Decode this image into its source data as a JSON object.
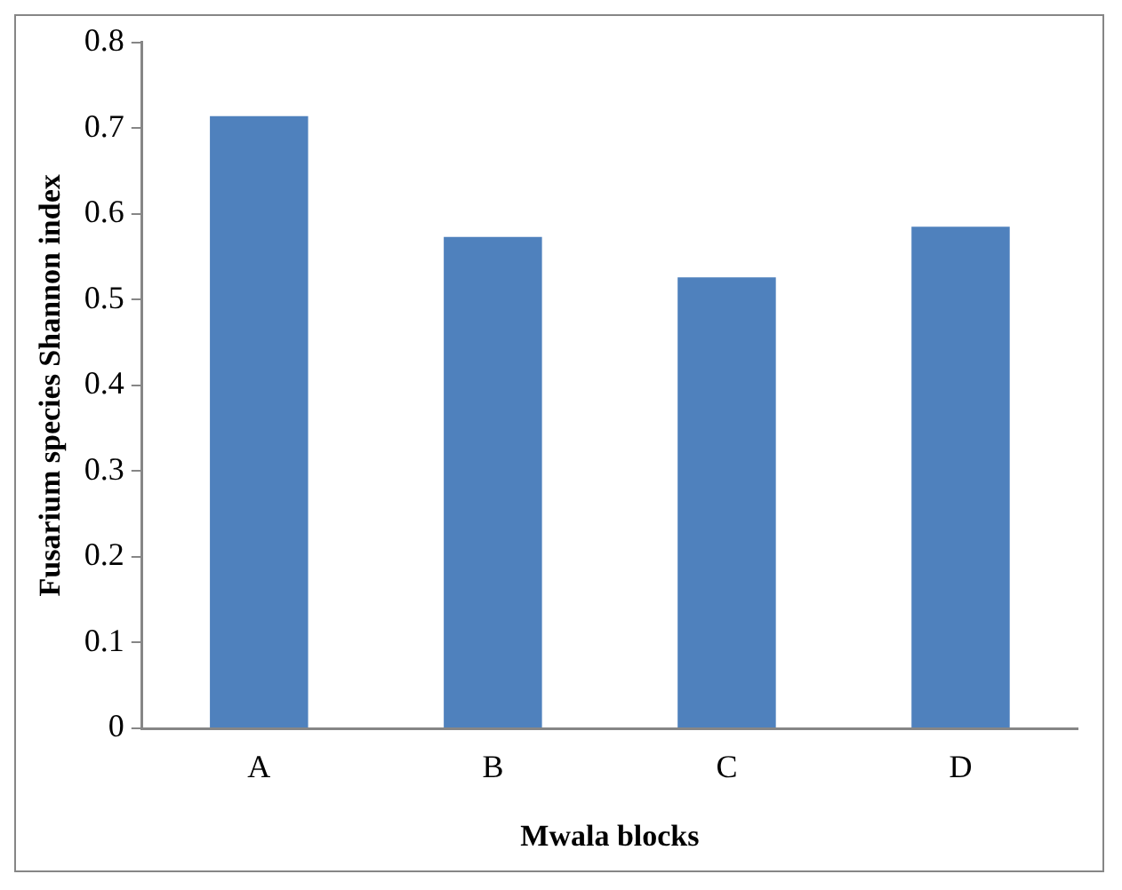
{
  "chart_data": {
    "type": "bar",
    "xlabel": "Mwala blocks",
    "ylabel": "Fusarium species Shannon index",
    "categories": [
      "A",
      "B",
      "C",
      "D"
    ],
    "values": [
      0.714,
      0.573,
      0.526,
      0.585
    ],
    "color": "#4f81bd",
    "ylim": [
      0,
      0.8
    ],
    "yticks": [
      0,
      0.1,
      0.2,
      0.3,
      0.4,
      0.5,
      0.6,
      0.7,
      0.8
    ],
    "grid": false,
    "legend": false
  }
}
